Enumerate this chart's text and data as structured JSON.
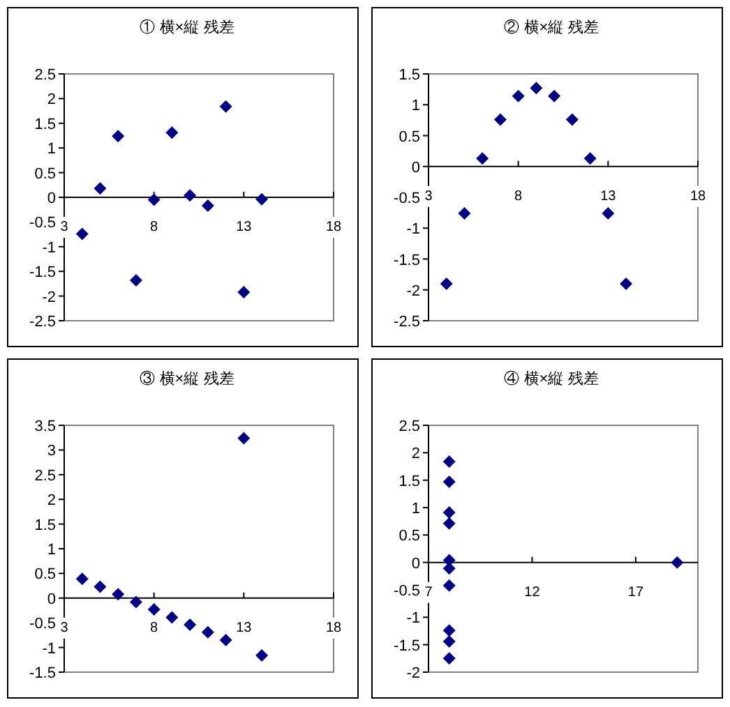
{
  "chart_data": [
    {
      "type": "scatter",
      "title": "① 横×縦 残差",
      "color": "#000080",
      "marker": "diamond",
      "grid": false,
      "x": [
        4,
        5,
        6,
        7,
        8,
        9,
        10,
        11,
        12,
        13,
        14
      ],
      "values": [
        -0.74,
        0.18,
        1.24,
        -1.68,
        -0.05,
        1.31,
        0.04,
        -0.17,
        1.84,
        -1.92,
        -0.04
      ],
      "xlim": [
        3,
        18
      ],
      "xticks": [
        3,
        8,
        13,
        18
      ],
      "ylim": [
        -2.5,
        2.5
      ],
      "yticks": [
        -2.5,
        -2,
        -1.5,
        -1,
        -0.5,
        0,
        0.5,
        1,
        1.5,
        2,
        2.5
      ]
    },
    {
      "type": "scatter",
      "title": "② 横×縦 残差",
      "color": "#000080",
      "marker": "diamond",
      "grid": false,
      "x": [
        4,
        5,
        6,
        7,
        8,
        9,
        10,
        11,
        12,
        13,
        14
      ],
      "values": [
        -1.9,
        -0.76,
        0.13,
        0.76,
        1.14,
        1.27,
        1.14,
        0.76,
        0.13,
        -0.76,
        -1.9
      ],
      "xlim": [
        3,
        18
      ],
      "xticks": [
        3,
        8,
        13,
        18
      ],
      "ylim": [
        -2.5,
        1.5
      ],
      "yticks": [
        -2.5,
        -2,
        -1.5,
        -1,
        -0.5,
        0,
        0.5,
        1,
        1.5
      ]
    },
    {
      "type": "scatter",
      "title": "③ 横×縦 残差",
      "color": "#000080",
      "marker": "diamond",
      "grid": false,
      "x": [
        4,
        5,
        6,
        7,
        8,
        9,
        10,
        11,
        12,
        13,
        14
      ],
      "values": [
        0.39,
        0.23,
        0.08,
        -0.08,
        -0.23,
        -0.39,
        -0.54,
        -0.69,
        -0.85,
        3.24,
        -1.16
      ],
      "xlim": [
        3,
        18
      ],
      "xticks": [
        3,
        8,
        13,
        18
      ],
      "ylim": [
        -1.5,
        3.5
      ],
      "yticks": [
        -1.5,
        -1,
        -0.5,
        0,
        0.5,
        1,
        1.5,
        2,
        2.5,
        3,
        3.5
      ]
    },
    {
      "type": "scatter",
      "title": "④ 横×縦 残差",
      "color": "#000080",
      "marker": "diamond",
      "grid": false,
      "x": [
        8,
        8,
        8,
        8,
        8,
        8,
        8,
        8,
        8,
        8,
        19
      ],
      "values": [
        1.84,
        1.47,
        0.91,
        0.71,
        0.04,
        -0.11,
        -0.42,
        -1.24,
        -1.44,
        -1.75,
        0
      ],
      "xlim": [
        7,
        20
      ],
      "xticks": [
        7,
        12,
        17
      ],
      "ylim": [
        -2,
        2.5
      ],
      "yticks": [
        -2,
        -1.5,
        -1,
        -0.5,
        0,
        0.5,
        1,
        1.5,
        2,
        2.5
      ]
    }
  ]
}
